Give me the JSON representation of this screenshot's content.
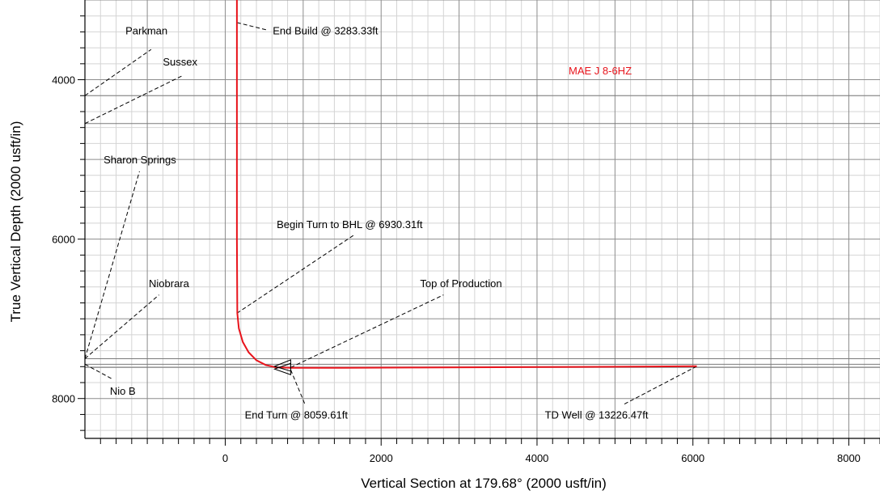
{
  "chart_data": {
    "type": "line",
    "xlabel": "Vertical Section at 179.68° (2000 usft/in)",
    "ylabel": "True Vertical Depth (2000 usft/in)",
    "xlim": [
      -1800,
      8400
    ],
    "ylim": [
      8500,
      3000
    ],
    "y_inverted": true,
    "grid": true,
    "x_ticks": [
      0,
      2000,
      4000,
      6000,
      8000
    ],
    "y_ticks": [
      4000,
      6000,
      8000
    ],
    "x_tick_labels": [
      "0",
      "2000",
      "4000",
      "6000",
      "8000"
    ],
    "y_tick_labels": [
      "4000",
      "6000",
      "8000"
    ],
    "well_label": "MAE J 8-6HZ",
    "well_color": "#e8141c",
    "formation_depths": [
      4200,
      4550,
      7500,
      7570,
      7610
    ],
    "series": [
      {
        "color": "#e8141c",
        "points": [
          [
            150,
            3000
          ],
          [
            150,
            3283
          ],
          [
            150,
            4000
          ],
          [
            150,
            5000
          ],
          [
            150,
            6000
          ],
          [
            155,
            6930
          ],
          [
            175,
            7120
          ],
          [
            225,
            7290
          ],
          [
            300,
            7420
          ],
          [
            400,
            7520
          ],
          [
            520,
            7580
          ],
          [
            650,
            7608
          ],
          [
            840,
            7615
          ],
          [
            1500,
            7614
          ],
          [
            2500,
            7611
          ],
          [
            3500,
            7607
          ],
          [
            4500,
            7603
          ],
          [
            5500,
            7598
          ],
          [
            6050,
            7595
          ]
        ]
      }
    ],
    "annotations": [
      {
        "text": "Parkman",
        "anchor": [
          -1800,
          4200
        ],
        "label_at": [
          -950,
          3620
        ],
        "label_pos": [
          -1280,
          3430
        ]
      },
      {
        "text": "Sussex",
        "anchor": [
          -1800,
          4550
        ],
        "label_at": [
          -550,
          3950
        ],
        "label_pos": [
          -800,
          3820
        ]
      },
      {
        "text": "Sharon Springs",
        "anchor": [
          -1800,
          7500
        ],
        "label_at": [
          -1100,
          5150
        ],
        "label_pos": [
          -1560,
          5050
        ]
      },
      {
        "text": "Niobrara",
        "anchor": [
          -1800,
          7500
        ],
        "label_at": [
          -850,
          6700
        ],
        "label_pos": [
          -980,
          6600
        ]
      },
      {
        "text": "Nio B",
        "anchor": [
          -1800,
          7570
        ],
        "label_at": [
          -1440,
          7760
        ],
        "label_pos": [
          -1480,
          7950
        ]
      },
      {
        "text": "End Build @ 3283.33ft",
        "anchor": [
          150,
          3283
        ],
        "label_at": [
          550,
          3380
        ],
        "label_pos": [
          610,
          3430
        ]
      },
      {
        "text": "Begin Turn to BHL @ 6930.31ft",
        "anchor": [
          150,
          6930
        ],
        "label_at": [
          1650,
          5950
        ],
        "label_pos": [
          660,
          5860
        ]
      },
      {
        "text": "Top of Production",
        "anchor": [
          840,
          7610
        ],
        "label_at": [
          2800,
          6700
        ],
        "label_pos": [
          2500,
          6600
        ]
      },
      {
        "text": "End Turn @ 8059.61ft",
        "anchor": [
          840,
          7640
        ],
        "label_at": [
          1030,
          8090
        ],
        "label_pos": [
          250,
          8250
        ]
      },
      {
        "text": "TD Well @ 13226.47ft",
        "anchor": [
          6050,
          7595
        ],
        "label_at": [
          5100,
          8080
        ],
        "label_pos": [
          4100,
          8250
        ]
      }
    ]
  }
}
